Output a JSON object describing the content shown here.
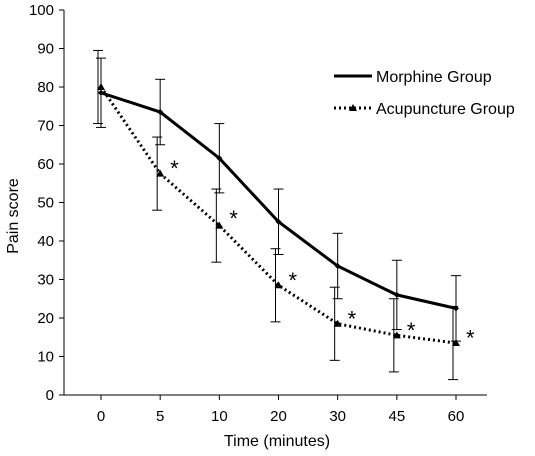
{
  "chart_data": {
    "type": "line",
    "categories": [
      "0",
      "5",
      "10",
      "20",
      "30",
      "45",
      "60"
    ],
    "xlabel": "Time (minutes)",
    "ylabel": "Pain score",
    "ylim": [
      0,
      100
    ],
    "yticks": [
      0,
      10,
      20,
      30,
      40,
      50,
      60,
      70,
      80,
      90,
      100
    ],
    "grid": false,
    "legend_position": "top-right",
    "series": [
      {
        "name": "Morphine Group",
        "line_style": "solid",
        "marker": "diamond",
        "values": [
          78.5,
          73.5,
          61.5,
          45,
          33.5,
          26,
          22.5
        ],
        "error": [
          9,
          8.5,
          9,
          8.5,
          8.5,
          9,
          8.5
        ]
      },
      {
        "name": "Acupuncture Group",
        "line_style": "dotted",
        "marker": "triangle",
        "values": [
          80,
          57.5,
          44,
          28.5,
          18.5,
          15.5,
          13.5
        ],
        "error": [
          9.5,
          9.5,
          9.5,
          9.5,
          9.5,
          9.5,
          9.5
        ]
      }
    ],
    "annotations": [
      {
        "text": "*",
        "category": "5",
        "y": 61
      },
      {
        "text": "*",
        "category": "10",
        "y": 48
      },
      {
        "text": "*",
        "category": "20",
        "y": 32
      },
      {
        "text": "*",
        "category": "30",
        "y": 22
      },
      {
        "text": "*",
        "category": "45",
        "y": 19
      },
      {
        "text": "*",
        "category": "60",
        "y": 17
      }
    ]
  }
}
